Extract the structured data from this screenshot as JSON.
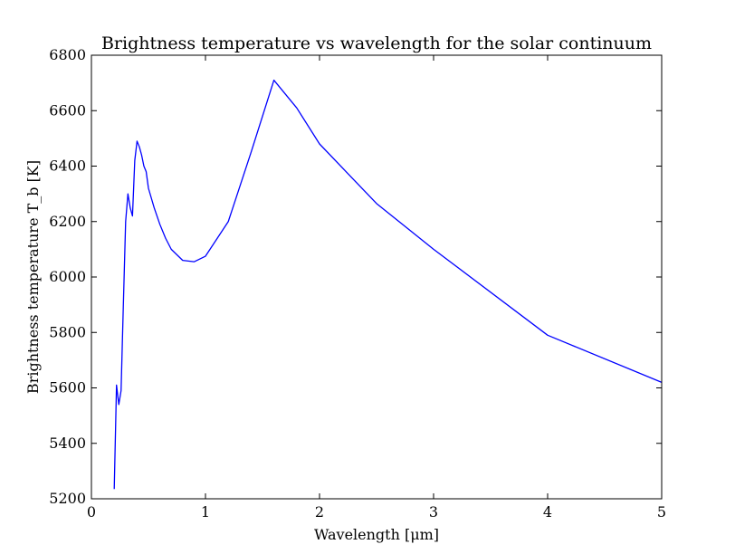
{
  "chart_data": {
    "type": "line",
    "title": "Brightness temperature vs wavelength for the solar continuum",
    "xlabel": "Wavelength [μm]",
    "ylabel": "Brightness temperature T_b [K]",
    "xlim": [
      0,
      5
    ],
    "ylim": [
      5200,
      6800
    ],
    "xticks": [
      "0",
      "1",
      "2",
      "3",
      "4",
      "5"
    ],
    "yticks": [
      "5200",
      "5400",
      "5600",
      "5800",
      "6000",
      "6200",
      "6400",
      "6600",
      "6800"
    ],
    "grid": false,
    "line_color": "#0000ff",
    "series": [
      {
        "x": [
          0.2,
          0.22,
          0.24,
          0.26,
          0.28,
          0.3,
          0.32,
          0.34,
          0.36,
          0.38,
          0.4,
          0.42,
          0.44,
          0.46,
          0.48,
          0.5,
          0.55,
          0.6,
          0.65,
          0.7,
          0.75,
          0.8,
          0.9,
          1.0,
          1.2,
          1.4,
          1.6,
          1.8,
          2.0,
          2.5,
          3.0,
          4.0,
          5.0
        ],
        "y": [
          5235,
          5610,
          5540,
          5590,
          5900,
          6200,
          6300,
          6250,
          6220,
          6420,
          6490,
          6470,
          6440,
          6400,
          6380,
          6320,
          6250,
          6190,
          6140,
          6100,
          6080,
          6060,
          6055,
          6075,
          6200,
          6450,
          6710,
          6610,
          6480,
          6265,
          6100,
          5790,
          5620
        ]
      }
    ]
  }
}
